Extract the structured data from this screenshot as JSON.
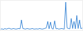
{
  "chart_data": {
    "type": "line",
    "color": "#4a90d9",
    "tick_labels": false,
    "grid": false,
    "x": [
      1,
      2,
      3,
      4,
      5,
      6,
      7,
      8,
      9,
      10,
      11,
      12,
      13,
      14,
      15,
      16,
      17,
      18,
      19,
      20,
      21,
      22,
      23,
      24,
      25,
      26,
      27,
      28,
      29,
      30,
      31,
      32,
      33,
      34,
      35,
      36,
      37,
      38,
      39,
      40,
      41,
      42,
      43,
      44,
      45,
      46,
      47,
      48,
      49,
      50,
      51,
      52,
      53,
      54,
      55,
      56,
      57,
      58,
      59,
      60
    ],
    "values": [
      4,
      5,
      3,
      6,
      4,
      5,
      7,
      5,
      4,
      6,
      5,
      4,
      5,
      6,
      5,
      35,
      6,
      5,
      4,
      6,
      5,
      4,
      5,
      6,
      4,
      5,
      5,
      4,
      6,
      5,
      4,
      5,
      6,
      8,
      30,
      5,
      28,
      6,
      4,
      32,
      5,
      6,
      4,
      5,
      6,
      5,
      4,
      95,
      8,
      6,
      5,
      40,
      6,
      30,
      5,
      50,
      6,
      35,
      5,
      8
    ],
    "xlim": [
      1,
      60
    ],
    "ylim": [
      0,
      100
    ]
  }
}
